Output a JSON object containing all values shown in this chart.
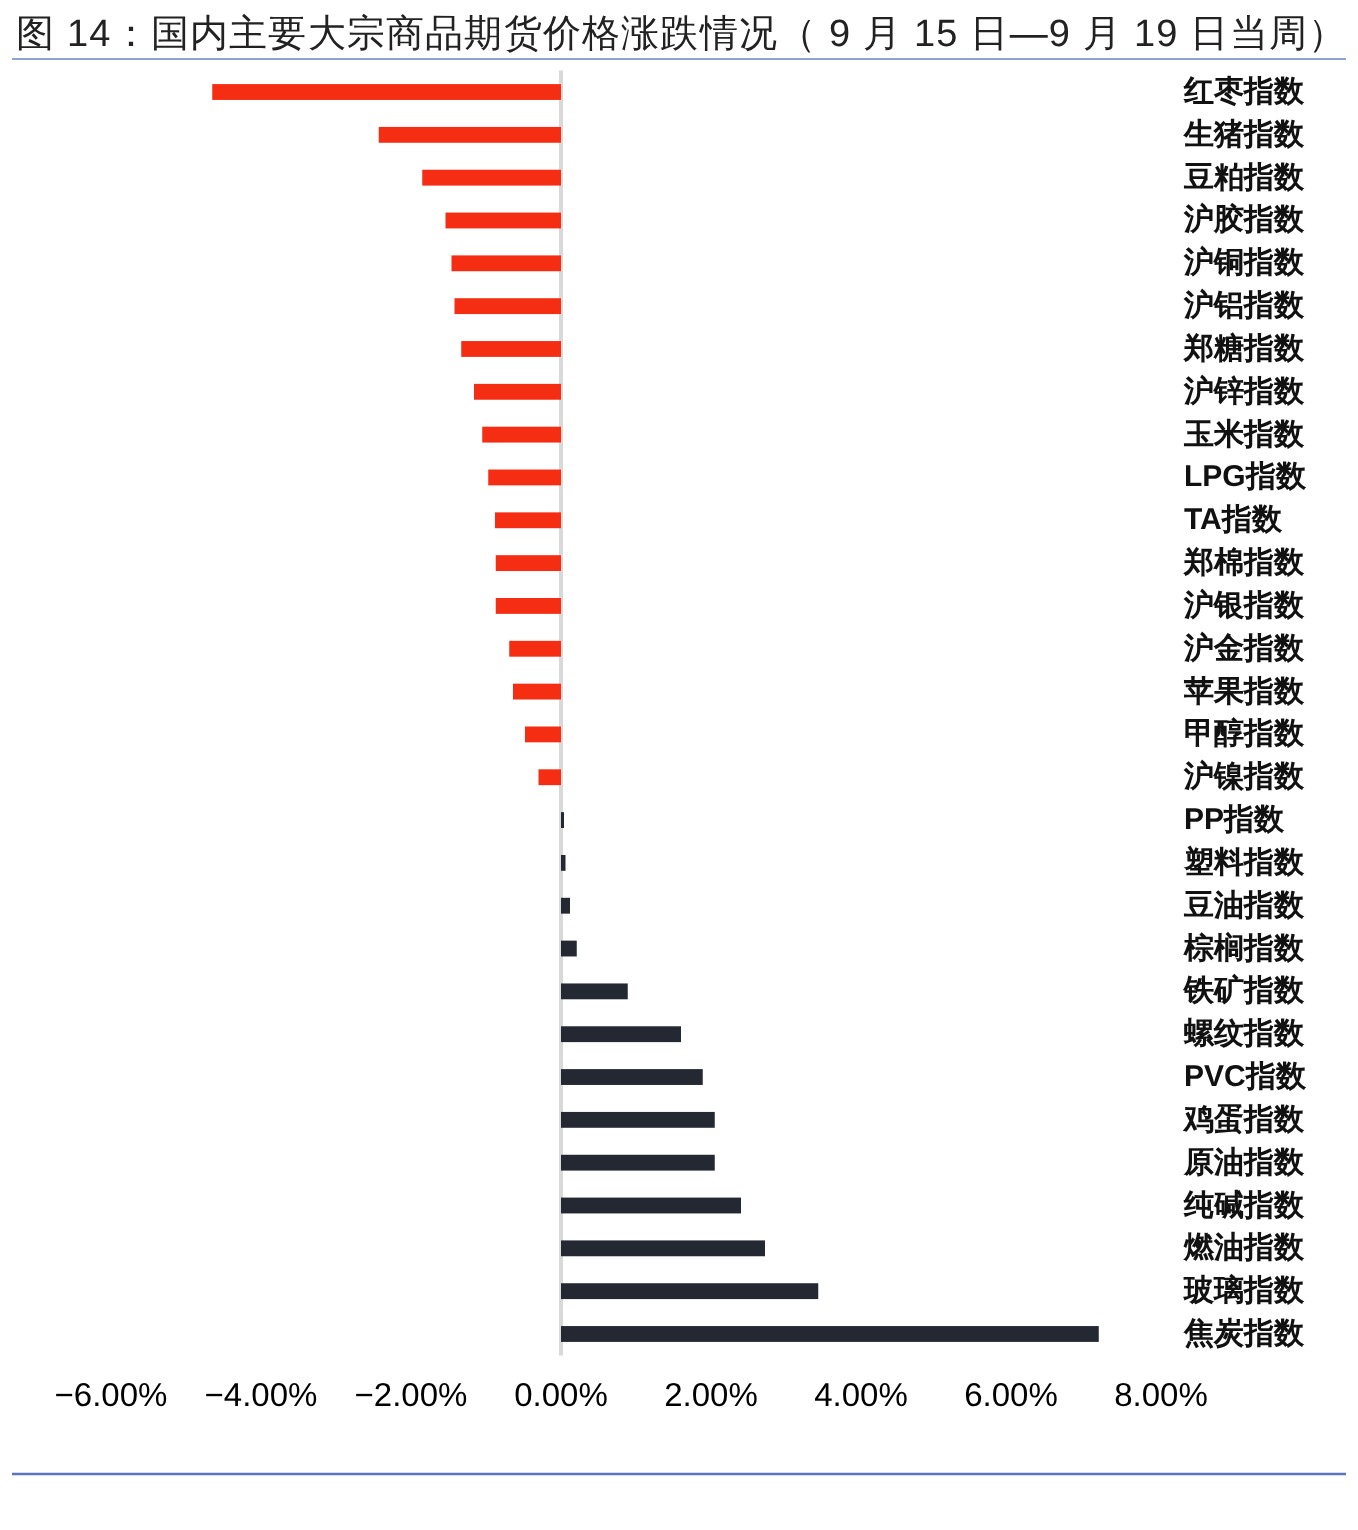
{
  "chart_data": {
    "type": "bar",
    "orientation": "horizontal",
    "title": "图 14：国内主要大宗商品期货价格涨跌情况（ 9 月 15 日—9 月 19 日当周）",
    "categories": [
      "红枣指数",
      "生猪指数",
      "豆粕指数",
      "沪胶指数",
      "沪铜指数",
      "沪铝指数",
      "郑糖指数",
      "沪锌指数",
      "玉米指数",
      "LPG指数",
      "TA指数",
      "郑棉指数",
      "沪银指数",
      "沪金指数",
      "苹果指数",
      "甲醇指数",
      "沪镍指数",
      "PP指数",
      "塑料指数",
      "豆油指数",
      "棕榈指数",
      "铁矿指数",
      "螺纹指数",
      "PVC指数",
      "鸡蛋指数",
      "原油指数",
      "纯碱指数",
      "燃油指数",
      "玻璃指数",
      "焦炭指数"
    ],
    "values": [
      -4.65,
      -2.43,
      -1.85,
      -1.54,
      -1.46,
      -1.42,
      -1.33,
      -1.16,
      -1.05,
      -0.97,
      -0.88,
      -0.87,
      -0.87,
      -0.69,
      -0.64,
      -0.48,
      -0.3,
      0.04,
      0.06,
      0.12,
      0.21,
      0.89,
      1.6,
      1.89,
      2.05,
      2.05,
      2.4,
      2.72,
      3.43,
      7.17
    ],
    "colors": [
      "#f52d12",
      "#f52d12",
      "#f52d12",
      "#f52d12",
      "#f52d12",
      "#f52d12",
      "#f52d12",
      "#f52d12",
      "#f52d12",
      "#f52d12",
      "#f52d12",
      "#f52d12",
      "#f52d12",
      "#f52d12",
      "#f52d12",
      "#f52d12",
      "#f52d12",
      "#232832",
      "#232832",
      "#232832",
      "#232832",
      "#232832",
      "#232832",
      "#232832",
      "#232832",
      "#232832",
      "#232832",
      "#232832",
      "#232832",
      "#232832"
    ],
    "xlim": [
      -6,
      8
    ],
    "xticks": [
      {
        "value": -6,
        "label": "−6.00%"
      },
      {
        "value": -4,
        "label": "−4.00%"
      },
      {
        "value": -2,
        "label": "−2.00%"
      },
      {
        "value": 0,
        "label": "0.00%"
      },
      {
        "value": 2,
        "label": "2.00%"
      },
      {
        "value": 4,
        "label": "4.00%"
      },
      {
        "value": 6,
        "label": "6.00%"
      },
      {
        "value": 8,
        "label": "8.00%"
      }
    ]
  }
}
